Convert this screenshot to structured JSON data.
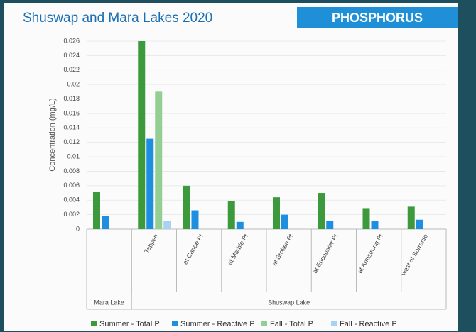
{
  "chart_data": {
    "type": "bar",
    "title": "Shuswap and Mara Lakes 2020",
    "subtitle": "PHOSPHORUS",
    "y_label": "Concentration (mg/L)",
    "categories": [
      null,
      "Tappen",
      "at Canoe Pt",
      "at Marble Pt",
      "at Broken Pt",
      "at Encounter Pt",
      "at Armstrong Pt",
      "west of Sorrento"
    ],
    "groups": [
      {
        "name": "Mara Lake",
        "count": 1
      },
      {
        "name": "Shuswap Lake",
        "count": 7
      }
    ],
    "series": [
      {
        "name": "Summer - Total P",
        "color": "#3c9a3c",
        "values": [
          0.0052,
          0.026,
          0.006,
          0.0039,
          0.0044,
          0.005,
          0.0029,
          0.0031
        ]
      },
      {
        "name": "Summer - Reactive P",
        "color": "#1e8fe0",
        "values": [
          0.0018,
          0.0125,
          0.0026,
          0.001,
          0.002,
          0.0011,
          0.0011,
          0.0013
        ]
      },
      {
        "name": "Fall - Total P",
        "color": "#93cf93",
        "values": [
          null,
          0.0191,
          null,
          null,
          null,
          null,
          null,
          null
        ]
      },
      {
        "name": "Fall - Reactive P",
        "color": "#a9d2f2",
        "values": [
          null,
          0.0011,
          null,
          null,
          null,
          null,
          null,
          null
        ]
      }
    ],
    "ylim": [
      0,
      0.026
    ],
    "yticks": [
      0,
      0.002,
      0.004,
      0.006,
      0.008,
      0.01,
      0.012,
      0.014,
      0.016,
      0.018,
      0.02,
      0.022,
      0.024,
      0.026
    ],
    "grid": true
  }
}
